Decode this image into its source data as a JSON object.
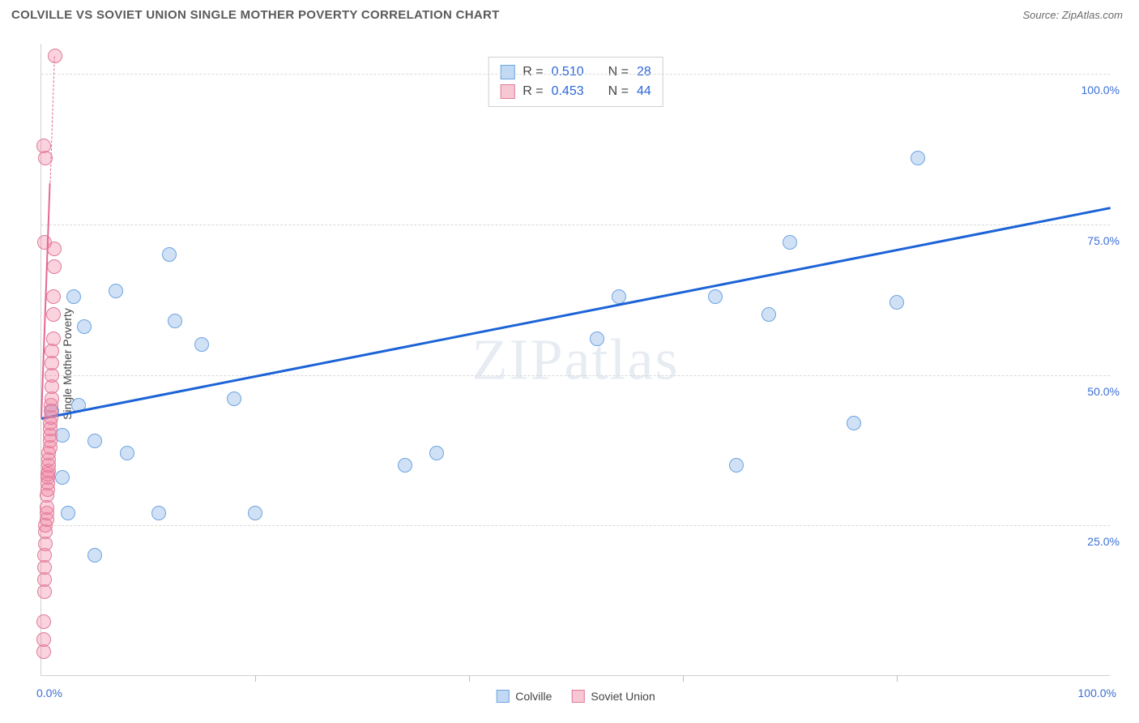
{
  "header": {
    "title": "COLVILLE VS SOVIET UNION SINGLE MOTHER POVERTY CORRELATION CHART",
    "source_prefix": "Source: ",
    "source_name": "ZipAtlas.com"
  },
  "watermark": {
    "text_1": "ZIP",
    "text_2": "atlas"
  },
  "chart": {
    "type": "scatter",
    "y_label": "Single Mother Poverty",
    "xlim": [
      0,
      100
    ],
    "ylim": [
      0,
      105
    ],
    "x_ticks": [
      0,
      20,
      40,
      60,
      80,
      100
    ],
    "x_tick_labels": [
      "0.0%",
      "",
      "",
      "",
      "",
      "100.0%"
    ],
    "y_grid": [
      25,
      50,
      75,
      100
    ],
    "y_tick_labels": [
      "25.0%",
      "50.0%",
      "75.0%",
      "100.0%"
    ],
    "background_color": "#ffffff",
    "grid_color": "#d9d9d9",
    "axis_tick_color": "#3b6fd6",
    "marker_radius": 9,
    "series": [
      {
        "name": "colville",
        "label": "Colville",
        "fill": "rgba(120,170,230,0.35)",
        "stroke": "#6ca4e0",
        "trend_color": "#1c63d6",
        "trend_solid": true,
        "trend": {
          "x0": 0,
          "y0": 43,
          "x1": 100,
          "y1": 78
        },
        "points": [
          [
            1,
            44
          ],
          [
            2,
            40
          ],
          [
            2,
            33
          ],
          [
            2.5,
            27
          ],
          [
            3,
            63
          ],
          [
            3.5,
            45
          ],
          [
            4,
            58
          ],
          [
            5,
            20
          ],
          [
            5,
            39
          ],
          [
            7,
            64
          ],
          [
            8,
            37
          ],
          [
            11,
            27
          ],
          [
            12,
            70
          ],
          [
            12.5,
            59
          ],
          [
            15,
            55
          ],
          [
            18,
            46
          ],
          [
            20,
            27
          ],
          [
            34,
            35
          ],
          [
            37,
            37
          ],
          [
            52,
            56
          ],
          [
            54,
            63
          ],
          [
            63,
            63
          ],
          [
            65,
            35
          ],
          [
            68,
            60
          ],
          [
            70,
            72
          ],
          [
            76,
            42
          ],
          [
            80,
            62
          ],
          [
            82,
            86
          ]
        ]
      },
      {
        "name": "soviet-union",
        "label": "Soviet Union",
        "fill": "rgba(240,130,160,0.35)",
        "stroke": "#e07a9a",
        "trend_color": "#e46a90",
        "trend_solid_partial": true,
        "trend_1": {
          "x0": 0,
          "y0": 43,
          "x1": 0.8,
          "y1": 82
        },
        "trend_2": {
          "x0": 0.8,
          "y1_": 82,
          "x1": 1.2,
          "y2": 103
        },
        "points": [
          [
            0.2,
            4
          ],
          [
            0.2,
            6
          ],
          [
            0.3,
            14
          ],
          [
            0.3,
            16
          ],
          [
            0.3,
            18
          ],
          [
            0.3,
            20
          ],
          [
            0.4,
            22
          ],
          [
            0.4,
            24
          ],
          [
            0.4,
            25
          ],
          [
            0.5,
            26
          ],
          [
            0.5,
            27
          ],
          [
            0.5,
            28
          ],
          [
            0.5,
            30
          ],
          [
            0.6,
            31
          ],
          [
            0.6,
            32
          ],
          [
            0.6,
            33
          ],
          [
            0.6,
            33.5
          ],
          [
            0.7,
            34
          ],
          [
            0.7,
            35
          ],
          [
            0.7,
            36
          ],
          [
            0.7,
            37
          ],
          [
            0.8,
            38
          ],
          [
            0.8,
            39
          ],
          [
            0.8,
            40
          ],
          [
            0.8,
            41
          ],
          [
            0.8,
            42
          ],
          [
            0.9,
            43
          ],
          [
            0.9,
            44
          ],
          [
            0.9,
            45
          ],
          [
            1.0,
            46
          ],
          [
            1.0,
            48
          ],
          [
            1.0,
            50
          ],
          [
            1.0,
            52
          ],
          [
            1.0,
            54
          ],
          [
            1.1,
            56
          ],
          [
            1.1,
            60
          ],
          [
            1.1,
            63
          ],
          [
            1.2,
            68
          ],
          [
            1.2,
            71
          ],
          [
            0.3,
            72
          ],
          [
            0.4,
            86
          ],
          [
            0.2,
            88
          ],
          [
            1.3,
            103
          ],
          [
            0.2,
            9
          ]
        ]
      }
    ]
  },
  "stats_legend": {
    "rows": [
      {
        "swatch_fill": "rgba(120,170,230,0.45)",
        "swatch_stroke": "#6ca4e0",
        "r_label": "R =",
        "r": "0.510",
        "n_label": "N =",
        "n": "28"
      },
      {
        "swatch_fill": "rgba(240,130,160,0.45)",
        "swatch_stroke": "#e07a9a",
        "r_label": "R =",
        "r": "0.453",
        "n_label": "N =",
        "n": "44"
      }
    ]
  },
  "series_legend": [
    {
      "fill": "rgba(120,170,230,0.45)",
      "stroke": "#6ca4e0",
      "label": "Colville"
    },
    {
      "fill": "rgba(240,130,160,0.45)",
      "stroke": "#e07a9a",
      "label": "Soviet Union"
    }
  ]
}
